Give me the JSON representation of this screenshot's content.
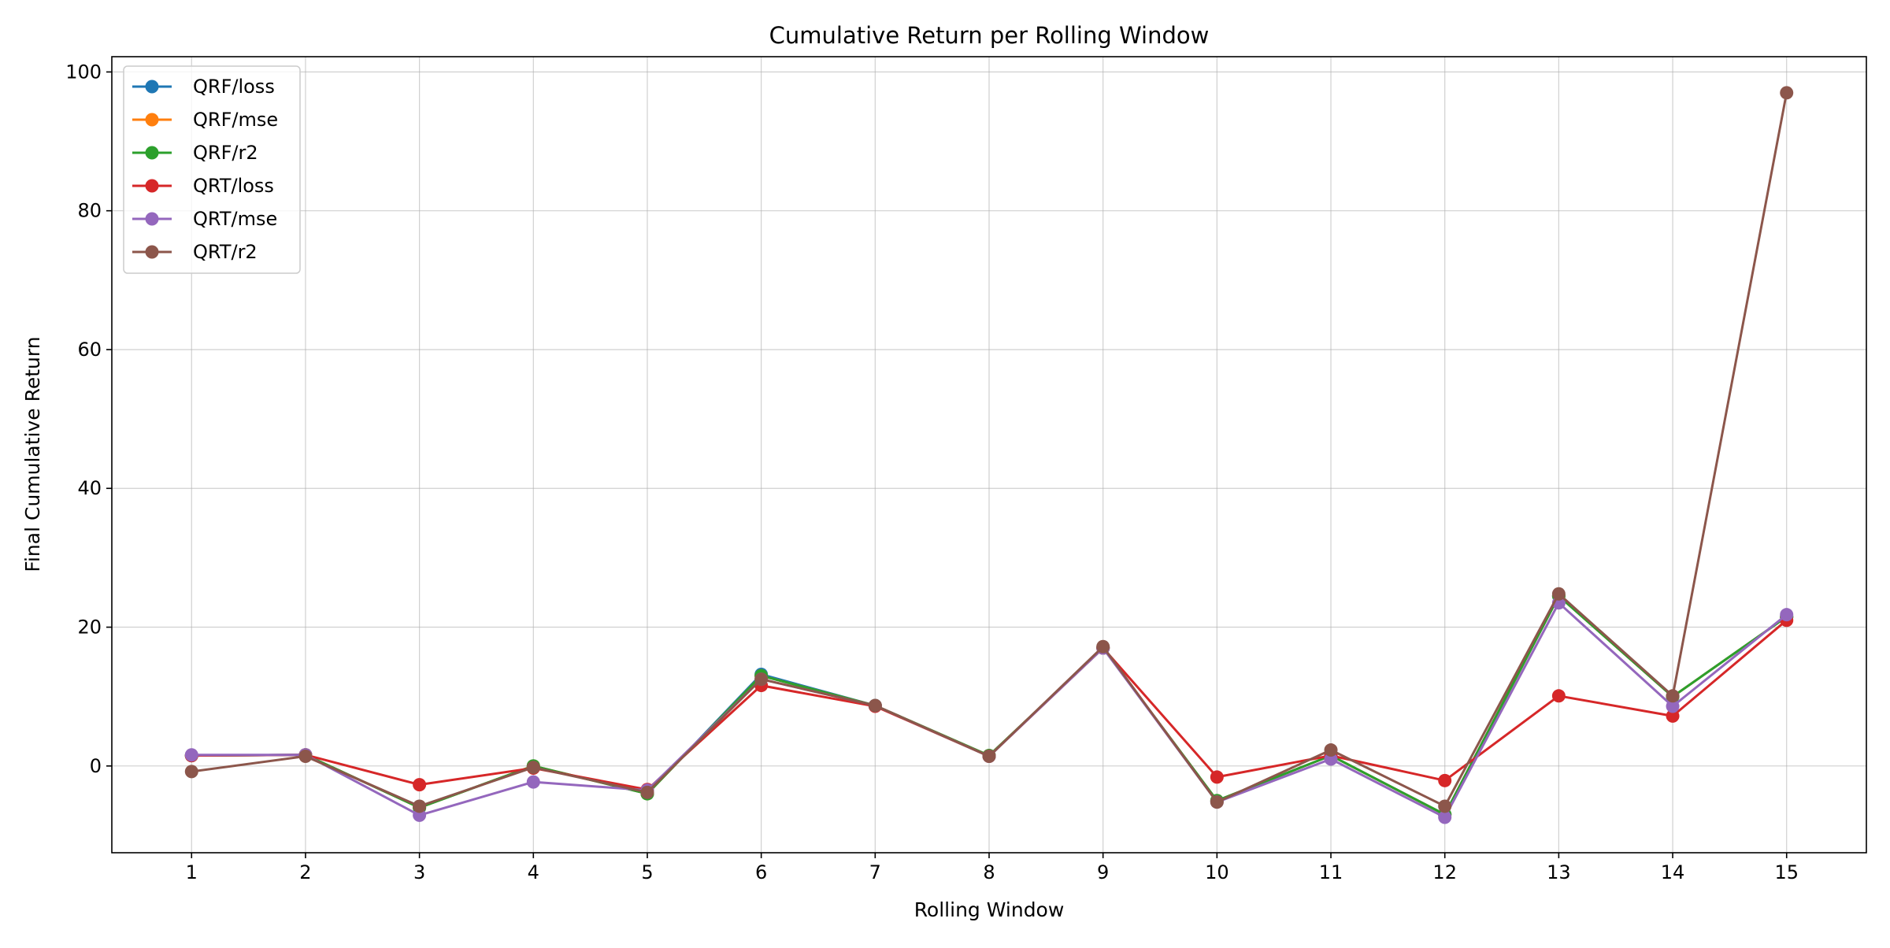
{
  "chart_data": {
    "type": "line",
    "title": "Cumulative Return per Rolling Window",
    "xlabel": "Rolling Window",
    "ylabel": "Final Cumulative Return",
    "x": [
      1,
      2,
      3,
      4,
      5,
      6,
      7,
      8,
      9,
      10,
      11,
      12,
      13,
      14,
      15
    ],
    "xlim": [
      0.3,
      15.7
    ],
    "ylim": [
      -12.5,
      102.2
    ],
    "yticks": [
      0,
      20,
      40,
      60,
      80,
      100
    ],
    "grid": true,
    "legend_position": "top-left",
    "series": [
      {
        "name": "QRF/loss",
        "color": "#1f77b4",
        "values": [
          1.5,
          1.6,
          -6.0,
          0.0,
          -4.0,
          13.2,
          8.7,
          1.5,
          17.0,
          -5.0,
          1.5,
          -7.0,
          24.5,
          10.0,
          21.5
        ]
      },
      {
        "name": "QRF/mse",
        "color": "#ff7f0e",
        "values": [
          1.5,
          1.6,
          -6.0,
          0.0,
          -4.0,
          13.0,
          8.7,
          1.5,
          17.0,
          -5.0,
          1.5,
          -7.0,
          24.5,
          10.0,
          21.5
        ]
      },
      {
        "name": "QRF/r2",
        "color": "#2ca02c",
        "values": [
          1.5,
          1.6,
          -6.0,
          0.0,
          -4.0,
          13.0,
          8.7,
          1.5,
          17.0,
          -5.0,
          1.5,
          -7.0,
          24.5,
          10.0,
          21.5
        ]
      },
      {
        "name": "QRT/loss",
        "color": "#d62728",
        "values": [
          1.5,
          1.6,
          -2.7,
          -0.3,
          -3.4,
          11.6,
          8.6,
          1.4,
          17.0,
          -1.6,
          1.5,
          -2.1,
          10.1,
          7.2,
          21.0
        ]
      },
      {
        "name": "QRT/mse",
        "color": "#9467bd",
        "values": [
          1.6,
          1.6,
          -7.1,
          -2.3,
          -3.5,
          12.5,
          8.7,
          1.4,
          17.0,
          -5.2,
          1.0,
          -7.4,
          23.5,
          8.6,
          21.8
        ]
      },
      {
        "name": "QRT/r2",
        "color": "#8c564b",
        "values": [
          -0.8,
          1.4,
          -5.8,
          -0.2,
          -3.8,
          12.5,
          8.7,
          1.4,
          17.2,
          -5.2,
          2.3,
          -5.8,
          24.8,
          10.1,
          97.0
        ]
      }
    ]
  }
}
